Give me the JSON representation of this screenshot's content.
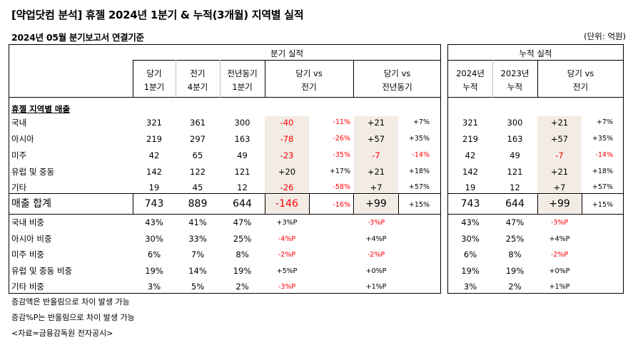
{
  "title": "[약업닷컴 분석] 휴젤 2024년 1분기 & 누적(3개월) 지역별 실적",
  "subtitle": "2024년 05월 분기보고서 연결기준",
  "unit": "(단위: 억원)",
  "headers": {
    "quarter_group": "분기 실적",
    "cumulative_group": "누적 실적",
    "q_cur": [
      "당기",
      "1분기"
    ],
    "q_prev": [
      "전기",
      "4분기"
    ],
    "q_yoy": [
      "전년동기",
      "1분기"
    ],
    "q_vs_prev": [
      "당기 vs",
      "전기"
    ],
    "q_vs_yoy": [
      "당기 vs",
      "전년동기"
    ],
    "c_cur": [
      "2024년",
      "누적"
    ],
    "c_prev": [
      "2023년",
      "누적"
    ],
    "c_vs": [
      "당기 vs",
      "전기"
    ]
  },
  "section_label": "휴젤 지역별 매출",
  "rows": [
    {
      "label": "국내",
      "cur": "321",
      "prev": "361",
      "yoy": "300",
      "d1": "-40",
      "p1": "-11%",
      "d2": "+21",
      "p2": "+7%",
      "c_cur": "321",
      "c_prev": "300",
      "c_d": "+21",
      "c_p": "+7%"
    },
    {
      "label": "아시아",
      "cur": "219",
      "prev": "297",
      "yoy": "163",
      "d1": "-78",
      "p1": "-26%",
      "d2": "+57",
      "p2": "+35%",
      "c_cur": "219",
      "c_prev": "163",
      "c_d": "+57",
      "c_p": "+35%"
    },
    {
      "label": "미주",
      "cur": "42",
      "prev": "65",
      "yoy": "49",
      "d1": "-23",
      "p1": "-35%",
      "d2": "-7",
      "p2": "-14%",
      "c_cur": "42",
      "c_prev": "49",
      "c_d": "-7",
      "c_p": "-14%"
    },
    {
      "label": "유럽 및 중동",
      "cur": "142",
      "prev": "122",
      "yoy": "121",
      "d1": "+20",
      "p1": "+17%",
      "d2": "+21",
      "p2": "+18%",
      "c_cur": "142",
      "c_prev": "121",
      "c_d": "+21",
      "c_p": "+18%"
    },
    {
      "label": "기타",
      "cur": "19",
      "prev": "45",
      "yoy": "12",
      "d1": "-26",
      "p1": "-58%",
      "d2": "+7",
      "p2": "+57%",
      "c_cur": "19",
      "c_prev": "12",
      "c_d": "+7",
      "c_p": "+57%"
    }
  ],
  "total": {
    "label": "매출 합계",
    "cur": "743",
    "prev": "889",
    "yoy": "644",
    "d1": "-146",
    "p1": "-16%",
    "d2": "+99",
    "p2": "+15%",
    "c_cur": "743",
    "c_prev": "644",
    "c_d": "+99",
    "c_p": "+15%"
  },
  "ratios": [
    {
      "label": "국내 비중",
      "cur": "43%",
      "prev": "41%",
      "yoy": "47%",
      "d1": "+3%P",
      "d2": "-3%P",
      "c_cur": "43%",
      "c_prev": "47%",
      "c_d": "-3%P"
    },
    {
      "label": "아시아 비중",
      "cur": "30%",
      "prev": "33%",
      "yoy": "25%",
      "d1": "-4%P",
      "d2": "+4%P",
      "c_cur": "30%",
      "c_prev": "25%",
      "c_d": "+4%P"
    },
    {
      "label": "미주 비중",
      "cur": "6%",
      "prev": "7%",
      "yoy": "8%",
      "d1": "-2%P",
      "d2": "-2%P",
      "c_cur": "6%",
      "c_prev": "8%",
      "c_d": "-2%P"
    },
    {
      "label": "유럽 및 중동 비중",
      "cur": "19%",
      "prev": "14%",
      "yoy": "19%",
      "d1": "+5%P",
      "d2": "+0%P",
      "c_cur": "19%",
      "c_prev": "19%",
      "c_d": "+0%P"
    },
    {
      "label": "기타 비중",
      "cur": "3%",
      "prev": "5%",
      "yoy": "2%",
      "d1": "-3%P",
      "d2": "+1%P",
      "c_cur": "3%",
      "c_prev": "2%",
      "c_d": "+1%P"
    }
  ],
  "notes": [
    "증감액은 반올림으로 차이 발생 가능",
    "증감%P는 반올림으로 차이 발생 가능",
    "<자료=금융감독원 전자공시>"
  ]
}
